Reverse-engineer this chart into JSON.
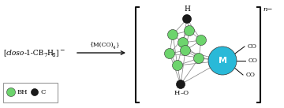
{
  "bg_color": "#ffffff",
  "bh_color": "#6dd46d",
  "c_color": "#1a1a1a",
  "m_color": "#29b9d8",
  "bond_color": "#888888",
  "arrow_color": "#111111",
  "bracket_color": "#111111",
  "figsize": [
    3.6,
    1.37
  ],
  "dpi": 100,
  "charge_label": "n−",
  "m_label": "M",
  "legend_bh": "BH",
  "legend_c": "C"
}
